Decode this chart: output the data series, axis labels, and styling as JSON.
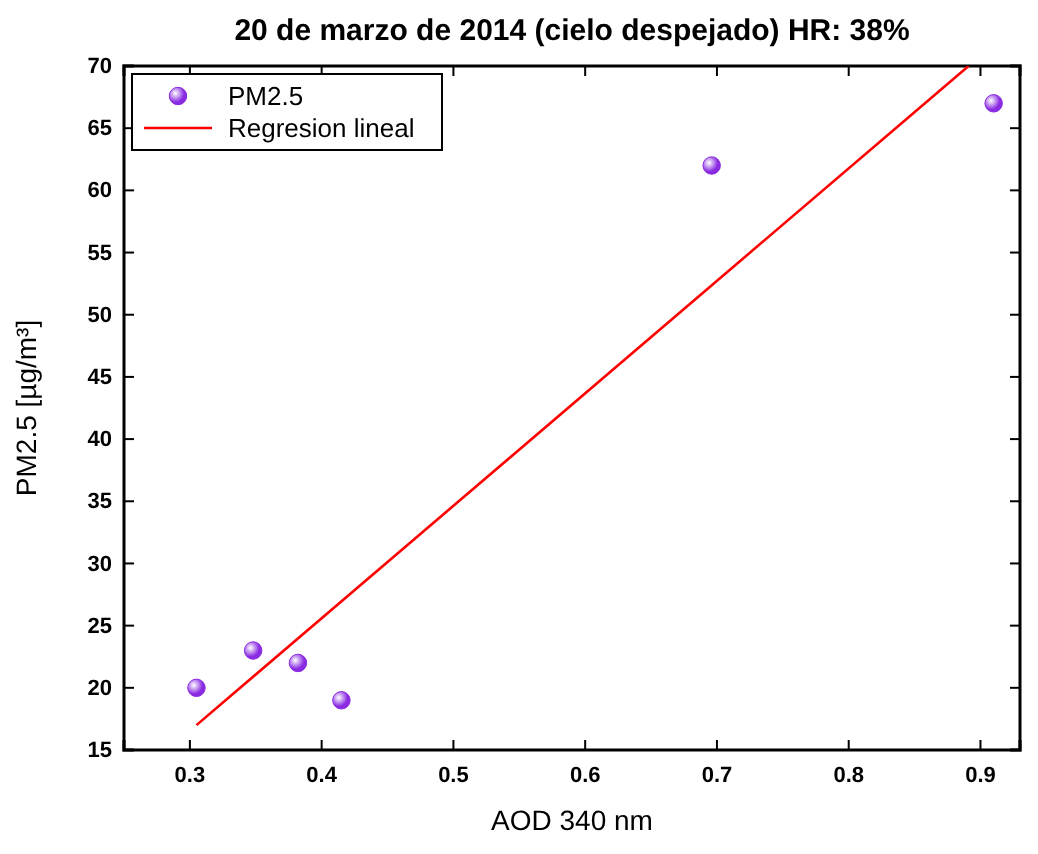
{
  "chart_data": {
    "type": "scatter",
    "title": "20 de marzo de 2014 (cielo despejado) HR: 38%",
    "xlabel": "AOD 340 nm",
    "ylabel": "PM2.5 [µg/m³]",
    "xlim": [
      0.25,
      0.93
    ],
    "xticks": [
      0.3,
      0.4,
      0.5,
      0.6,
      0.7,
      0.8,
      0.9
    ],
    "ylim": [
      15,
      70
    ],
    "yticks": [
      15,
      20,
      25,
      30,
      35,
      40,
      45,
      50,
      55,
      60,
      65,
      70
    ],
    "grid": false,
    "legend": "top left",
    "series": [
      {
        "name": "PM2.5",
        "marker": "circle",
        "color": "#8a2be2",
        "x": [
          0.305,
          0.348,
          0.382,
          0.415,
          0.696,
          0.91
        ],
        "values": [
          20,
          23,
          22,
          19,
          62,
          67
        ]
      },
      {
        "name": "Regresion lineal",
        "type": "line",
        "marker": "none",
        "line_style": "solid",
        "color": "#ff0000",
        "x": [
          0.305,
          0.891
        ],
        "values": [
          17,
          70
        ]
      }
    ]
  }
}
